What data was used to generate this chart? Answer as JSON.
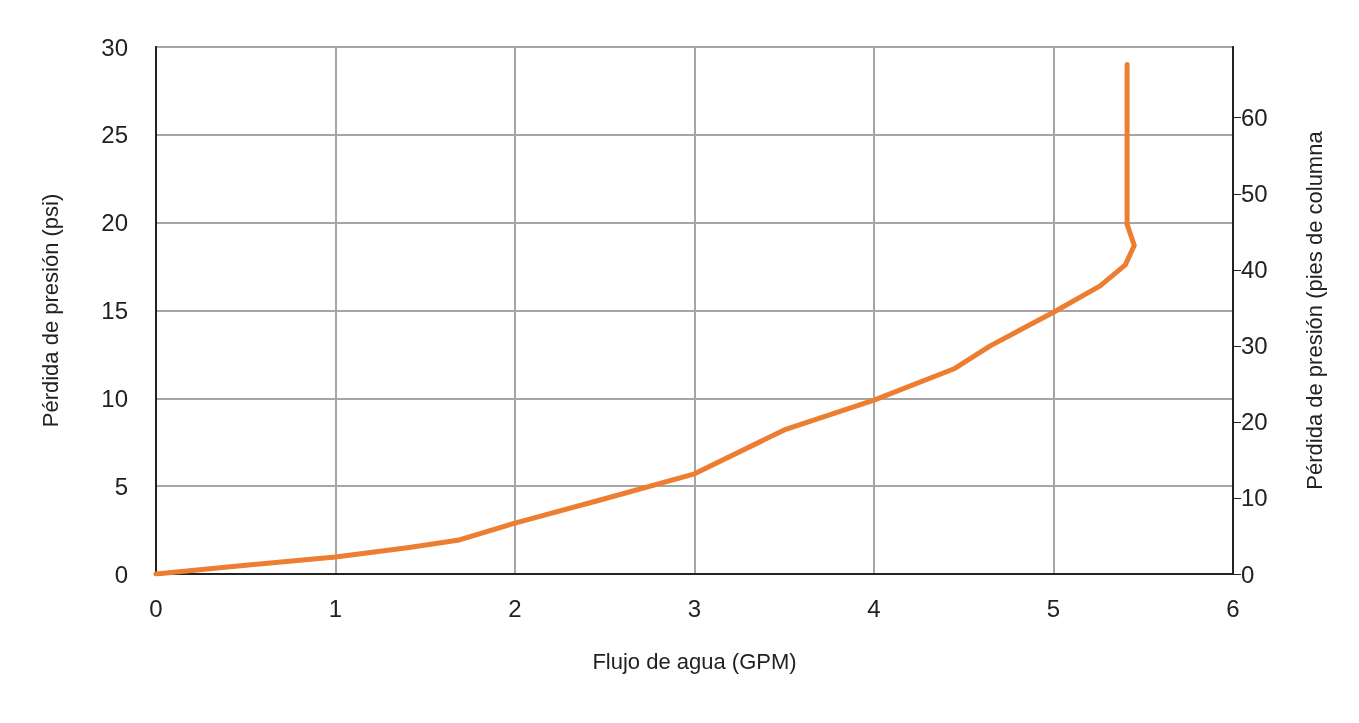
{
  "chart_data": {
    "type": "line",
    "xlabel": "Flujo de agua (GPM)",
    "ylabel": "Pérdida de presión (psi)",
    "y2label": "Pérdida de presión (pies de columna",
    "series": [
      {
        "color": "#ed7d31",
        "x": [
          0,
          0.5,
          1.0,
          1.4,
          1.69,
          2.0,
          2.47,
          3.0,
          3.5,
          4.0,
          4.45,
          4.65,
          5.0,
          5.26,
          5.4,
          5.45,
          5.41,
          5.41,
          5.41
        ],
        "values": [
          0,
          0.5,
          0.97,
          1.5,
          1.94,
          2.9,
          4.2,
          5.7,
          8.2,
          9.9,
          11.7,
          13.0,
          14.9,
          16.4,
          17.6,
          18.7,
          19.9,
          24.1,
          29.0
        ]
      }
    ],
    "xlim": [
      0,
      6
    ],
    "xticks": [
      0,
      1,
      2,
      3,
      4,
      5,
      6
    ],
    "ylim": [
      0,
      30
    ],
    "yticks": [
      0,
      5,
      10,
      15,
      20,
      25,
      30
    ],
    "y2lim": [
      0,
      69.3
    ],
    "y2ticks": [
      0,
      10,
      20,
      30,
      40,
      50,
      60
    ],
    "grid": true,
    "marker": "none",
    "line_style": "solid"
  }
}
